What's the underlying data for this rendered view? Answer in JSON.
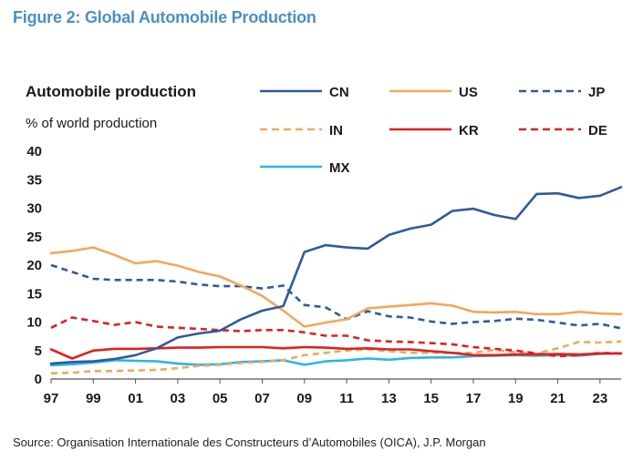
{
  "figure_title": "Figure 2: Global Automobile Production",
  "source": "Source: Organisation Internationale des Constructeurs d’Automobiles (OICA), J.P. Morgan",
  "chart_data": {
    "type": "line",
    "title": "Automobile production",
    "ylabel": "% of world production",
    "xlabel": "",
    "ylim": [
      0,
      40
    ],
    "xlim": [
      1997,
      2024
    ],
    "yticks": [
      "0",
      "5",
      "10",
      "15",
      "20",
      "25",
      "30",
      "35",
      "40"
    ],
    "xticks": [
      "97",
      "99",
      "01",
      "03",
      "05",
      "07",
      "09",
      "11",
      "13",
      "15",
      "17",
      "19",
      "21",
      "23"
    ],
    "x": [
      1997,
      1998,
      1999,
      2000,
      2001,
      2002,
      2003,
      2004,
      2005,
      2006,
      2007,
      2008,
      2009,
      2010,
      2011,
      2012,
      2013,
      2014,
      2015,
      2016,
      2017,
      2018,
      2019,
      2020,
      2021,
      2022,
      2023,
      2024
    ],
    "legend_position": "top-right",
    "grid": false,
    "series": [
      {
        "name": "CN",
        "color": "#2f5b9a",
        "dash": "solid",
        "values": [
          2.7,
          3.0,
          3.1,
          3.5,
          4.2,
          5.4,
          7.3,
          8.0,
          8.5,
          10.5,
          12.0,
          12.8,
          22.3,
          23.5,
          23.1,
          22.9,
          25.3,
          26.4,
          27.1,
          29.5,
          29.9,
          28.8,
          28.1,
          32.5,
          32.6,
          31.8,
          32.2,
          33.7
        ]
      },
      {
        "name": "US",
        "color": "#f1a85a",
        "dash": "solid",
        "values": [
          22.1,
          22.5,
          23.1,
          21.8,
          20.3,
          20.7,
          19.9,
          18.8,
          18.0,
          16.4,
          14.6,
          12.0,
          9.2,
          9.9,
          10.5,
          12.4,
          12.7,
          13.0,
          13.3,
          12.9,
          11.8,
          11.7,
          11.8,
          11.4,
          11.4,
          11.8,
          11.5,
          11.4
        ]
      },
      {
        "name": "JP",
        "color": "#2f5b9a",
        "dash": "dashed",
        "values": [
          20.0,
          18.8,
          17.6,
          17.4,
          17.4,
          17.4,
          17.1,
          16.6,
          16.3,
          16.3,
          15.9,
          16.4,
          13.0,
          12.6,
          10.5,
          11.9,
          11.0,
          10.8,
          10.1,
          9.7,
          10.0,
          10.2,
          10.6,
          10.4,
          9.9,
          9.4,
          9.7,
          8.9
        ]
      },
      {
        "name": "IN",
        "color": "#f1a85a",
        "dash": "dashed",
        "values": [
          1.0,
          1.1,
          1.4,
          1.4,
          1.5,
          1.6,
          1.9,
          2.3,
          2.5,
          2.8,
          3.0,
          3.3,
          4.2,
          4.6,
          5.0,
          5.2,
          4.9,
          4.6,
          4.6,
          4.6,
          4.6,
          5.1,
          4.7,
          4.5,
          5.4,
          6.5,
          6.4,
          6.6
        ]
      },
      {
        "name": "KR",
        "color": "#e02020",
        "dash": "solid",
        "values": [
          5.2,
          3.6,
          5.0,
          5.3,
          5.3,
          5.4,
          5.5,
          5.5,
          5.6,
          5.6,
          5.6,
          5.4,
          5.6,
          5.5,
          5.3,
          5.4,
          5.2,
          5.2,
          4.9,
          4.6,
          4.2,
          4.2,
          4.3,
          4.3,
          4.4,
          4.3,
          4.5,
          4.5
        ]
      },
      {
        "name": "DE",
        "color": "#e02020",
        "dash": "dashed",
        "values": [
          9.0,
          10.8,
          10.2,
          9.5,
          10.0,
          9.2,
          9.0,
          8.8,
          8.6,
          8.4,
          8.6,
          8.6,
          8.2,
          7.6,
          7.6,
          6.8,
          6.6,
          6.5,
          6.3,
          6.1,
          5.6,
          5.3,
          5.0,
          4.5,
          4.0,
          4.2,
          4.6,
          4.5
        ]
      },
      {
        "name": "MX",
        "color": "#29b6e6",
        "dash": "solid",
        "values": [
          2.4,
          2.6,
          2.9,
          3.3,
          3.2,
          3.1,
          2.7,
          2.5,
          2.6,
          3.0,
          3.1,
          3.3,
          2.5,
          3.1,
          3.3,
          3.6,
          3.4,
          3.7,
          3.8,
          3.8,
          4.0,
          4.1,
          4.2,
          4.1,
          4.2,
          4.1,
          4.4,
          4.5
        ]
      }
    ]
  }
}
